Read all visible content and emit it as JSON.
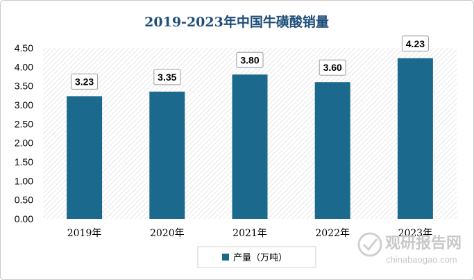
{
  "chart_data": {
    "type": "bar",
    "title": "2019-2023年中国牛磺酸销量",
    "categories": [
      "2019年",
      "2020年",
      "2021年",
      "2022年",
      "2023年"
    ],
    "series": [
      {
        "name": "产量（万吨）",
        "values": [
          3.23,
          3.35,
          3.8,
          3.6,
          4.23
        ],
        "data_labels": [
          "3.23",
          "3.35",
          "3.80",
          "3.60",
          "4.23"
        ]
      }
    ],
    "ylim": [
      0,
      4.5
    ],
    "yticks": [
      "0.00",
      "0.50",
      "1.00",
      "1.50",
      "2.00",
      "2.50",
      "3.00",
      "3.50",
      "4.00",
      "4.50"
    ],
    "grid": false,
    "legend": "bottom"
  },
  "colors": {
    "bar": "#1b6a8e",
    "title": "#1f4e79",
    "plot_pattern": "#e2e2e2"
  },
  "watermark": {
    "name": "观研报告网",
    "url": "chinabaogao.com"
  }
}
